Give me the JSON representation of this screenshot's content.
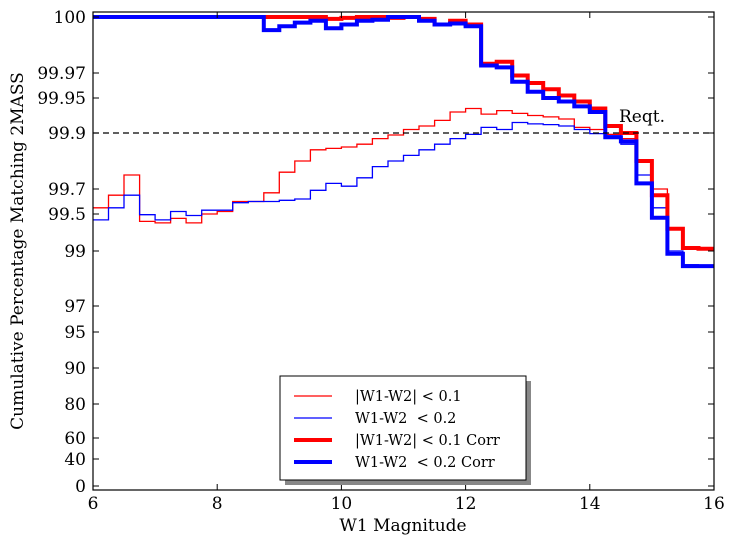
{
  "chart_data": {
    "type": "line",
    "xlabel": "W1 Magnitude",
    "ylabel": "Cumulative Percentage Matching 2MASS",
    "xlim": [
      6,
      16
    ],
    "x_ticks": [
      6,
      8,
      10,
      12,
      14,
      16
    ],
    "y_ticks": [
      "100",
      "99.97",
      "99.95",
      "99.9",
      "99.7",
      "99.5",
      "99",
      "97",
      "95",
      "90",
      "80",
      "60",
      "40",
      "0"
    ],
    "reference_line": {
      "value": 99.9,
      "label": "Reqt.",
      "style": "dashed"
    },
    "legend_position": "lower center",
    "colors": {
      "red": "#ff0000",
      "blue": "#0000ff"
    },
    "series": [
      {
        "name": "|W1-W2| < 0.1",
        "color": "#ff0000",
        "linewidth": "thin",
        "x": [
          6.0,
          6.25,
          6.5,
          6.75,
          7.0,
          7.25,
          7.5,
          7.75,
          8.0,
          8.25,
          8.5,
          8.75,
          9.0,
          9.25,
          9.5,
          9.75,
          10.0,
          10.25,
          10.5,
          10.75,
          11.0,
          11.25,
          11.5,
          11.75,
          12.0,
          12.25,
          12.5,
          12.75,
          13.0,
          13.25,
          13.5,
          13.75,
          14.0,
          14.25,
          14.5,
          14.75,
          15.0,
          15.25,
          15.5,
          15.75
        ],
        "y": [
          99.55,
          99.65,
          99.75,
          99.4,
          99.38,
          99.44,
          99.38,
          99.5,
          99.52,
          99.6,
          99.6,
          99.67,
          99.76,
          99.8,
          99.84,
          99.845,
          99.85,
          99.86,
          99.88,
          99.893,
          99.905,
          99.91,
          99.918,
          99.93,
          99.935,
          99.927,
          99.932,
          99.928,
          99.925,
          99.923,
          99.92,
          99.908,
          99.905,
          99.895,
          99.88,
          99.8,
          99.7,
          99.3,
          99.03,
          99.02
        ]
      },
      {
        "name": "W1-W2  < 0.2",
        "color": "#0000ff",
        "linewidth": "thin",
        "x": [
          6.0,
          6.25,
          6.5,
          6.75,
          7.0,
          7.25,
          7.5,
          7.75,
          8.0,
          8.25,
          8.5,
          8.75,
          9.0,
          9.25,
          9.5,
          9.75,
          10.0,
          10.25,
          10.5,
          10.75,
          11.0,
          11.25,
          11.5,
          11.75,
          12.0,
          12.25,
          12.5,
          12.75,
          13.0,
          13.25,
          13.5,
          13.75,
          14.0,
          14.25,
          14.5,
          14.75,
          15.0,
          15.25,
          15.5,
          15.75
        ],
        "y": [
          99.42,
          99.55,
          99.65,
          99.49,
          99.42,
          99.52,
          99.48,
          99.53,
          99.53,
          99.59,
          99.6,
          99.6,
          99.61,
          99.62,
          99.69,
          99.72,
          99.71,
          99.74,
          99.78,
          99.8,
          99.82,
          99.84,
          99.86,
          99.88,
          99.895,
          99.908,
          99.905,
          99.915,
          99.913,
          99.912,
          99.91,
          99.905,
          99.898,
          99.89,
          99.86,
          99.75,
          99.55,
          99.0,
          98.5,
          98.45
        ]
      },
      {
        "name": "|W1-W2| < 0.1 Corr",
        "color": "#ff0000",
        "linewidth": "thick",
        "x": [
          6.0,
          6.25,
          6.5,
          6.75,
          7.0,
          7.25,
          7.5,
          7.75,
          8.0,
          8.25,
          8.5,
          8.75,
          9.0,
          9.25,
          9.5,
          9.75,
          10.0,
          10.25,
          10.5,
          10.75,
          11.0,
          11.25,
          11.5,
          11.75,
          12.0,
          12.25,
          12.5,
          12.75,
          13.0,
          13.25,
          13.5,
          13.75,
          14.0,
          14.25,
          14.5,
          14.75,
          15.0,
          15.25,
          15.5,
          15.75
        ],
        "y": [
          100,
          100,
          100,
          100,
          100,
          100,
          100,
          100,
          100,
          100,
          100,
          100,
          100,
          100,
          100,
          99.999,
          99.9995,
          100,
          100,
          99.9995,
          100,
          99.999,
          99.996,
          99.998,
          99.996,
          99.975,
          99.976,
          99.968,
          99.962,
          99.957,
          99.952,
          99.945,
          99.935,
          99.91,
          99.9,
          99.8,
          99.65,
          99.3,
          99.04,
          99.03
        ]
      },
      {
        "name": "W1-W2  < 0.2 Corr",
        "color": "#0000ff",
        "linewidth": "thick",
        "x": [
          6.0,
          6.25,
          6.5,
          6.75,
          7.0,
          7.25,
          7.5,
          7.75,
          8.0,
          8.25,
          8.5,
          8.75,
          9.0,
          9.25,
          9.5,
          9.75,
          10.0,
          10.25,
          10.5,
          10.75,
          11.0,
          11.25,
          11.5,
          11.75,
          12.0,
          12.25,
          12.5,
          12.75,
          13.0,
          13.25,
          13.5,
          13.75,
          14.0,
          14.25,
          14.5,
          14.75,
          15.0,
          15.25,
          15.5,
          15.75
        ],
        "y": [
          100,
          100,
          100,
          100,
          100,
          100,
          100,
          100,
          100,
          100,
          100,
          99.993,
          99.995,
          99.997,
          99.998,
          99.994,
          99.996,
          99.998,
          99.9985,
          100,
          100,
          99.998,
          99.996,
          99.9965,
          99.995,
          99.974,
          99.973,
          99.963,
          99.955,
          99.95,
          99.945,
          99.938,
          99.93,
          99.885,
          99.87,
          99.72,
          99.45,
          98.9,
          98.45,
          98.45
        ]
      }
    ]
  }
}
